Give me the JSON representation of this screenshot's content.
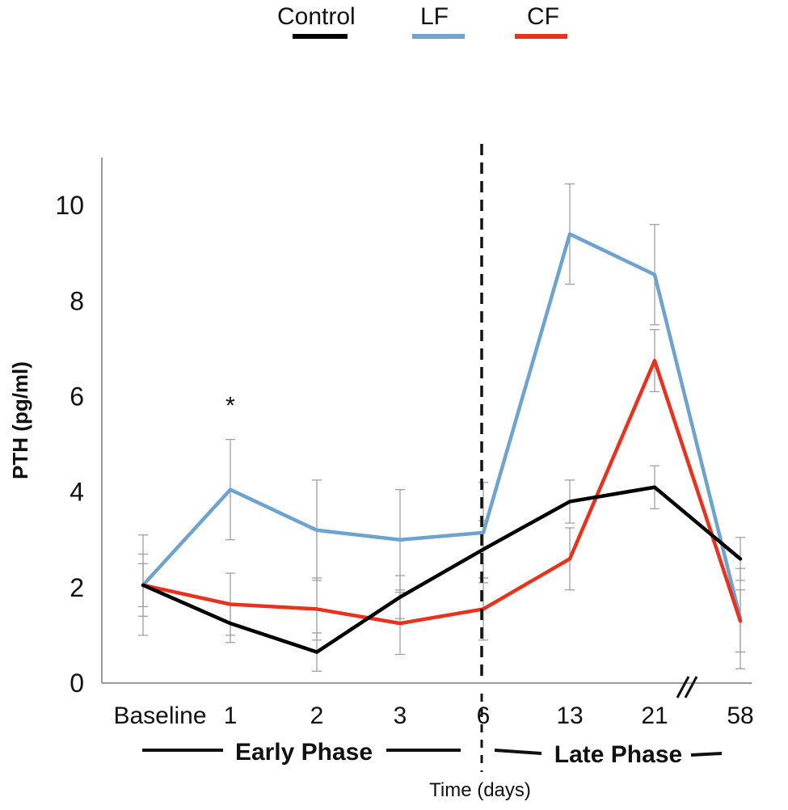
{
  "chart_data": {
    "type": "line",
    "title": "",
    "xlabel": "Time (days)",
    "ylabel": "PTH (pg/ml)",
    "ylim": [
      0,
      11
    ],
    "yticks": [
      0,
      2,
      4,
      6,
      8,
      10
    ],
    "categories": [
      "Baseline",
      "1",
      "2",
      "3",
      "6",
      "13",
      "21",
      "58"
    ],
    "legend_position": "top",
    "grid": false,
    "series": [
      {
        "name": "Control",
        "color": "#000000",
        "values": [
          2.05,
          1.25,
          0.65,
          1.8,
          2.8,
          3.8,
          4.1,
          2.6
        ],
        "error": [
          0.65,
          0.4,
          0.4,
          0.45,
          0.6,
          0.45,
          0.45,
          0.45
        ]
      },
      {
        "name": "LF",
        "color": "#6fa3cf",
        "values": [
          2.05,
          4.05,
          3.2,
          3.0,
          3.15,
          9.4,
          8.55,
          1.35
        ],
        "error": [
          1.05,
          1.05,
          1.05,
          1.05,
          1.05,
          1.05,
          1.05,
          1.05
        ]
      },
      {
        "name": "CF",
        "color": "#e8321e",
        "values": [
          2.05,
          1.65,
          1.55,
          1.25,
          1.55,
          2.6,
          6.75,
          1.3
        ],
        "error": [
          0.45,
          0.65,
          0.65,
          0.65,
          0.65,
          0.65,
          0.65,
          0.65
        ]
      }
    ],
    "annotations": [
      {
        "text": "*",
        "category": "1",
        "value": 5.9
      }
    ],
    "phases": [
      {
        "label": "Early Phase",
        "from": "Baseline",
        "to": "6"
      },
      {
        "label": "Late Phase",
        "from": "6",
        "to": "58"
      }
    ],
    "axis_break_between": [
      "21",
      "58"
    ],
    "divider_at": "6"
  }
}
